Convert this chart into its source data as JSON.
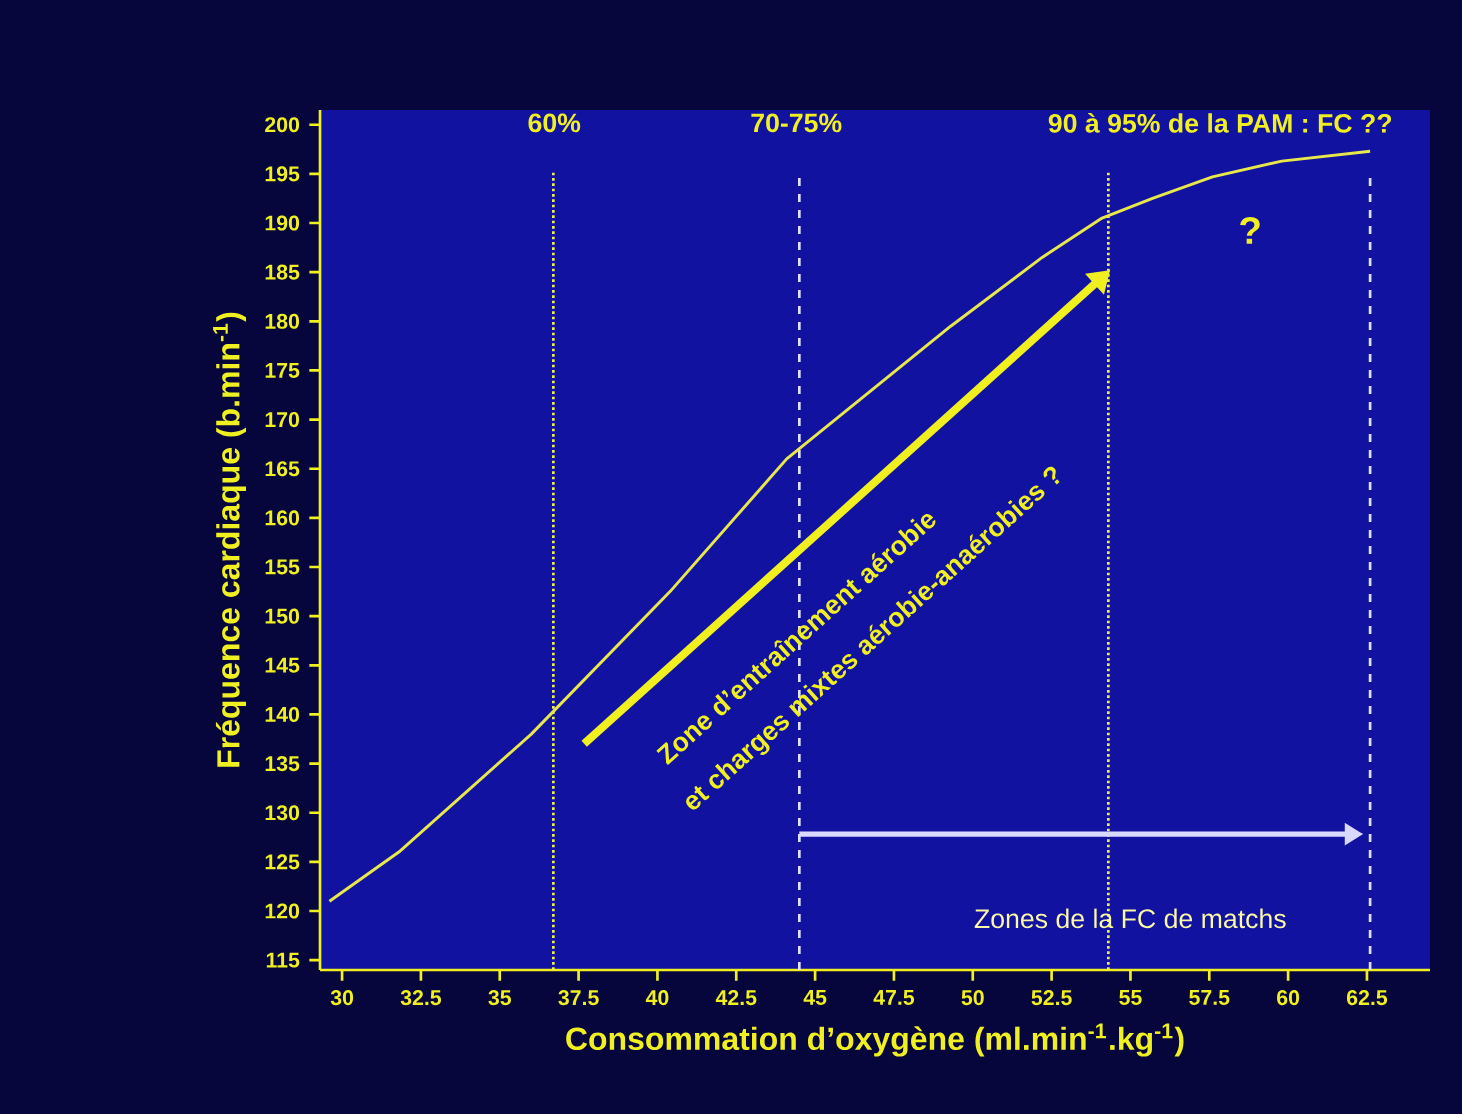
{
  "chart_data": {
    "type": "line",
    "xlabel": "Consommation d’oxygène (ml.min$^{-1}$.kg$^{-1}$)",
    "ylabel": "Fréquence cardiaque (b.min$^{-1}$)",
    "series": [
      {
        "color": "#e8e84a",
        "x": [
          29.6,
          31.8,
          36,
          40.4,
          44.1,
          49.3,
          52.2,
          54.1,
          55.7,
          57.6,
          59.8,
          62.6
        ],
        "values": [
          121,
          126,
          138,
          152.5,
          166,
          179.5,
          186.5,
          190.5,
          192.5,
          194.7,
          196.3,
          197.3
        ]
      }
    ],
    "xlim": [
      29.3,
      64.5
    ],
    "ylim": [
      114,
      201.5
    ],
    "xticks": [
      30,
      {
        "value": 32.5,
        "label": "32.5"
      },
      35,
      {
        "value": 37.5,
        "label": "37.5"
      },
      40,
      {
        "value": 42.5,
        "label": "42.5"
      },
      45,
      {
        "value": 47.5,
        "label": "47.5"
      },
      50,
      {
        "value": 52.5,
        "label": "52.5"
      },
      55,
      {
        "value": 57.5,
        "label": "57.5"
      },
      60,
      {
        "value": 62.5,
        "label": "62.5"
      }
    ],
    "yticks": [
      115,
      120,
      125,
      130,
      135,
      140,
      145,
      150,
      155,
      160,
      165,
      170,
      175,
      180,
      185,
      190,
      195,
      200
    ],
    "ref_lines": [
      {
        "axis": "x",
        "value": 36.7,
        "color": "#f0f050",
        "line_style": "dotted"
      },
      {
        "axis": "x",
        "value": 44.5,
        "color": "#e0e0ff",
        "line_style": "dashed"
      },
      {
        "axis": "x",
        "value": 54.3,
        "color": "#f0f050",
        "line_style": "dotted"
      },
      {
        "axis": "x",
        "value": 62.6,
        "color": "#e0e0ff",
        "line_style": "dashed"
      }
    ],
    "annotations": [
      "60%",
      "70-75%",
      "90 à 95% de la PAM : FC ??",
      "Zone d’entraînement aérobie",
      "et charges mixtes aérobie-anaérobies ?",
      "?",
      "Zones de la FC de matchs"
    ]
  }
}
